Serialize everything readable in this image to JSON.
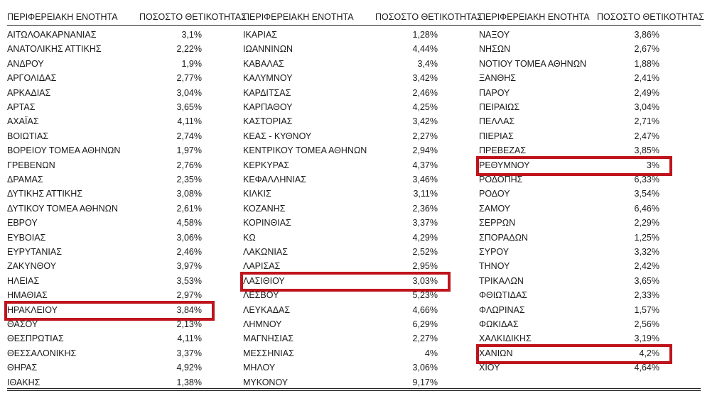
{
  "headers": {
    "region": "ΠΕΡΙΦΕΡΕΙΑΚΗ ΕΝΟΤΗΤΑ",
    "rate": "ΠΟΣΟΣΤΟ ΘΕΤΙΚΟΤΗΤΑΣ"
  },
  "columns": [
    {
      "rows": [
        {
          "name": "ΑΙΤΩΛΟΑΚΑΡΝΑΝΙΑΣ",
          "rate": "3,1%"
        },
        {
          "name": "ΑΝΑΤΟΛΙΚΗΣ ΑΤΤΙΚΗΣ",
          "rate": "2,22%"
        },
        {
          "name": "ΑΝΔΡΟΥ",
          "rate": "1,9%"
        },
        {
          "name": "ΑΡΓΟΛΙΔΑΣ",
          "rate": "2,77%"
        },
        {
          "name": "ΑΡΚΑΔΙΑΣ",
          "rate": "3,04%"
        },
        {
          "name": "ΑΡΤΑΣ",
          "rate": "3,65%"
        },
        {
          "name": "ΑΧΑΪΑΣ",
          "rate": "4,11%"
        },
        {
          "name": "ΒΟΙΩΤΙΑΣ",
          "rate": "2,74%"
        },
        {
          "name": "ΒΟΡΕΙΟΥ ΤΟΜΕΑ ΑΘΗΝΩΝ",
          "rate": "1,97%"
        },
        {
          "name": "ΓΡΕΒΕΝΩΝ",
          "rate": "2,76%"
        },
        {
          "name": "ΔΡΑΜΑΣ",
          "rate": "2,35%"
        },
        {
          "name": "ΔΥΤΙΚΗΣ ΑΤΤΙΚΗΣ",
          "rate": "3,08%"
        },
        {
          "name": "ΔΥΤΙΚΟΥ ΤΟΜΕΑ ΑΘΗΝΩΝ",
          "rate": "2,61%"
        },
        {
          "name": "ΕΒΡΟΥ",
          "rate": "4,58%"
        },
        {
          "name": "ΕΥΒΟΙΑΣ",
          "rate": "3,06%"
        },
        {
          "name": "ΕΥΡΥΤΑΝΙΑΣ",
          "rate": "2,46%"
        },
        {
          "name": "ΖΑΚΥΝΘΟΥ",
          "rate": "3,97%"
        },
        {
          "name": "ΗΛΕΙΑΣ",
          "rate": "3,53%"
        },
        {
          "name": "ΗΜΑΘΙΑΣ",
          "rate": "2,97%"
        },
        {
          "name": "ΗΡΑΚΛΕΙΟΥ",
          "rate": "3,84%",
          "highlight": true
        },
        {
          "name": "ΘΑΣΟΥ",
          "rate": "2,13%"
        },
        {
          "name": "ΘΕΣΠΡΩΤΙΑΣ",
          "rate": "4,11%"
        },
        {
          "name": "ΘΕΣΣΑΛΟΝΙΚΗΣ",
          "rate": "3,37%"
        },
        {
          "name": "ΘΗΡΑΣ",
          "rate": "4,92%"
        },
        {
          "name": "ΙΘΑΚΗΣ",
          "rate": "1,38%"
        }
      ]
    },
    {
      "rows": [
        {
          "name": "ΙΚΑΡΙΑΣ",
          "rate": "1,28%"
        },
        {
          "name": "ΙΩΑΝΝΙΝΩΝ",
          "rate": "4,44%"
        },
        {
          "name": "ΚΑΒΑΛΑΣ",
          "rate": "3,4%"
        },
        {
          "name": "ΚΑΛΥΜΝΟΥ",
          "rate": "3,42%"
        },
        {
          "name": "ΚΑΡΔΙΤΣΑΣ",
          "rate": "2,46%"
        },
        {
          "name": "ΚΑΡΠΑΘΟΥ",
          "rate": "4,25%"
        },
        {
          "name": "ΚΑΣΤΟΡΙΑΣ",
          "rate": "3,42%"
        },
        {
          "name": "ΚΕΑΣ - ΚΥΘΝΟΥ",
          "rate": "2,27%"
        },
        {
          "name": "ΚΕΝΤΡΙΚΟΥ ΤΟΜΕΑ ΑΘΗΝΩΝ",
          "rate": "2,94%"
        },
        {
          "name": "ΚΕΡΚΥΡΑΣ",
          "rate": "4,37%"
        },
        {
          "name": "ΚΕΦΑΛΛΗΝΙΑΣ",
          "rate": "3,46%"
        },
        {
          "name": "ΚΙΛΚΙΣ",
          "rate": "3,11%"
        },
        {
          "name": "ΚΟΖΑΝΗΣ",
          "rate": "2,36%"
        },
        {
          "name": "ΚΟΡΙΝΘΙΑΣ",
          "rate": "3,37%"
        },
        {
          "name": "ΚΩ",
          "rate": "4,29%"
        },
        {
          "name": "ΛΑΚΩΝΙΑΣ",
          "rate": "2,52%"
        },
        {
          "name": "ΛΑΡΙΣΑΣ",
          "rate": "2,95%"
        },
        {
          "name": "ΛΑΣΙΘΙΟΥ",
          "rate": "3,03%",
          "highlight": true
        },
        {
          "name": "ΛΕΣΒΟΥ",
          "rate": "5,23%"
        },
        {
          "name": "ΛΕΥΚΑΔΑΣ",
          "rate": "4,66%"
        },
        {
          "name": "ΛΗΜΝΟΥ",
          "rate": "6,29%"
        },
        {
          "name": "ΜΑΓΝΗΣΙΑΣ",
          "rate": "2,27%"
        },
        {
          "name": "ΜΕΣΣΗΝΙΑΣ",
          "rate": "4%"
        },
        {
          "name": "ΜΗΛΟΥ",
          "rate": "3,06%"
        },
        {
          "name": "ΜΥΚΟΝΟΥ",
          "rate": "9,17%"
        }
      ]
    },
    {
      "rows": [
        {
          "name": "ΝΑΞΟΥ",
          "rate": "3,86%"
        },
        {
          "name": "ΝΗΣΩΝ",
          "rate": "2,67%"
        },
        {
          "name": "ΝΟΤΙΟΥ ΤΟΜΕΑ ΑΘΗΝΩΝ",
          "rate": "1,88%"
        },
        {
          "name": "ΞΑΝΘΗΣ",
          "rate": "2,41%"
        },
        {
          "name": "ΠΑΡΟΥ",
          "rate": "2,49%"
        },
        {
          "name": "ΠΕΙΡΑΙΩΣ",
          "rate": "3,04%"
        },
        {
          "name": "ΠΕΛΛΑΣ",
          "rate": "2,71%"
        },
        {
          "name": "ΠΙΕΡΙΑΣ",
          "rate": "2,47%"
        },
        {
          "name": "ΠΡΕΒΕΖΑΣ",
          "rate": "3,85%"
        },
        {
          "name": "ΡΕΘΥΜΝΟΥ",
          "rate": "3%",
          "highlight": true
        },
        {
          "name": "ΡΟΔΟΠΗΣ",
          "rate": "6,33%"
        },
        {
          "name": "ΡΟΔΟΥ",
          "rate": "3,54%"
        },
        {
          "name": "ΣΑΜΟΥ",
          "rate": "6,46%"
        },
        {
          "name": "ΣΕΡΡΩΝ",
          "rate": "2,29%"
        },
        {
          "name": "ΣΠΟΡΑΔΩΝ",
          "rate": "1,25%"
        },
        {
          "name": "ΣΥΡΟΥ",
          "rate": "3,32%"
        },
        {
          "name": "ΤΗΝΟΥ",
          "rate": "2,42%"
        },
        {
          "name": "ΤΡΙΚΑΛΩΝ",
          "rate": "3,65%"
        },
        {
          "name": "ΦΘΙΩΤΙΔΑΣ",
          "rate": "2,33%"
        },
        {
          "name": "ΦΛΩΡΙΝΑΣ",
          "rate": "1,57%"
        },
        {
          "name": "ΦΩΚΙΔΑΣ",
          "rate": "2,56%"
        },
        {
          "name": "ΧΑΛΚΙΔΙΚΗΣ",
          "rate": "3,19%"
        },
        {
          "name": "ΧΑΝΙΩΝ",
          "rate": "4,2%",
          "highlight": true
        },
        {
          "name": "ΧΙΟΥ",
          "rate": "4,64%"
        }
      ]
    }
  ],
  "colors": {
    "highlight": "#c0141c",
    "text": "#1a1a1a"
  }
}
